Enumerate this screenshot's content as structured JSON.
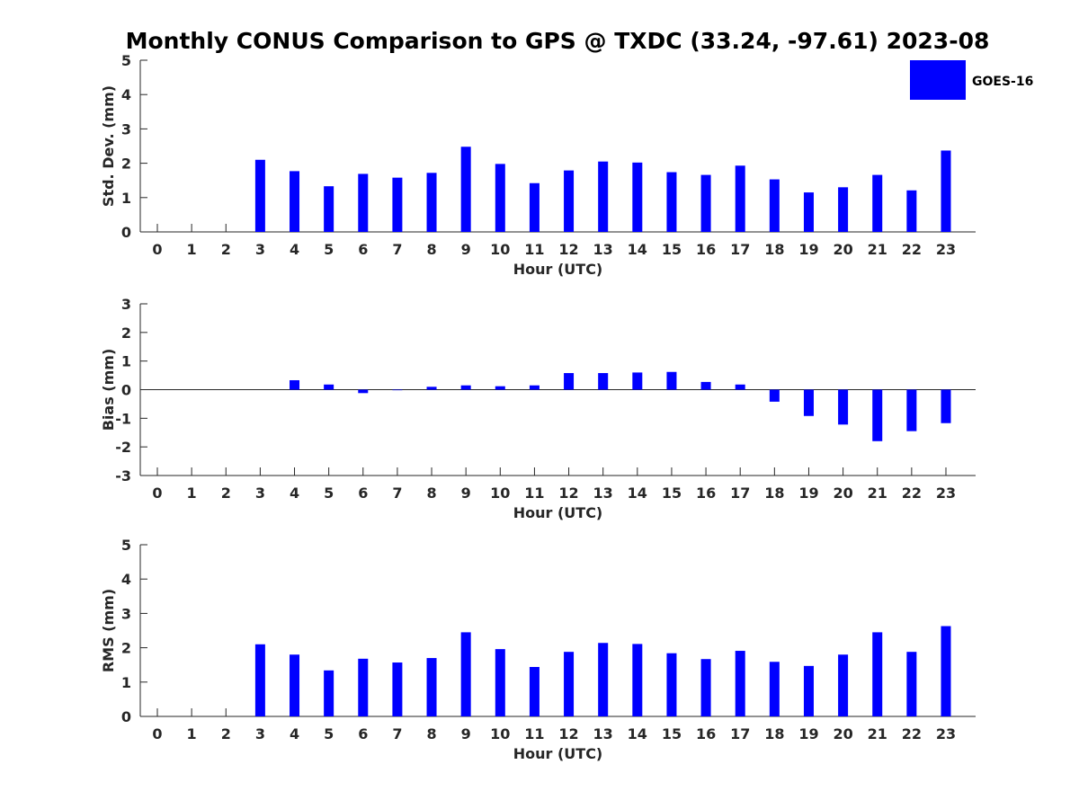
{
  "title": "Monthly CONUS Comparison to GPS @ TXDC (33.24, -97.61) 2023-08",
  "legend": {
    "label": "GOES-16",
    "color": "#0000ff",
    "placement": "top-right"
  },
  "chart_data": [
    {
      "type": "bar",
      "categories": [
        "0",
        "1",
        "2",
        "3",
        "4",
        "5",
        "6",
        "7",
        "8",
        "9",
        "10",
        "11",
        "12",
        "13",
        "14",
        "15",
        "16",
        "17",
        "18",
        "19",
        "20",
        "21",
        "22",
        "23"
      ],
      "series": [
        {
          "name": "GOES-16",
          "values": [
            null,
            null,
            null,
            2.1,
            1.77,
            1.33,
            1.69,
            1.58,
            1.72,
            2.48,
            1.98,
            1.42,
            1.79,
            2.05,
            2.02,
            1.74,
            1.66,
            1.93,
            1.53,
            1.15,
            1.3,
            1.66,
            1.21,
            2.37
          ]
        }
      ],
      "xlabel": "Hour (UTC)",
      "ylabel": "Std. Dev. (mm)",
      "ylim": [
        0,
        5
      ],
      "yticks": [
        "0",
        "1",
        "2",
        "3",
        "4",
        "5"
      ],
      "grid": false
    },
    {
      "type": "bar",
      "categories": [
        "0",
        "1",
        "2",
        "3",
        "4",
        "5",
        "6",
        "7",
        "8",
        "9",
        "10",
        "11",
        "12",
        "13",
        "14",
        "15",
        "16",
        "17",
        "18",
        "19",
        "20",
        "21",
        "22",
        "23"
      ],
      "series": [
        {
          "name": "GOES-16",
          "values": [
            null,
            null,
            null,
            0.0,
            0.33,
            0.18,
            -0.12,
            -0.02,
            0.1,
            0.15,
            0.12,
            0.15,
            0.58,
            0.58,
            0.6,
            0.62,
            0.27,
            0.18,
            -0.42,
            -0.92,
            -1.22,
            -1.8,
            -1.45,
            -1.17
          ]
        }
      ],
      "xlabel": "Hour (UTC)",
      "ylabel": "Bias (mm)",
      "ylim": [
        -3,
        3
      ],
      "yticks": [
        "-3",
        "-2",
        "-1",
        "0",
        "1",
        "2",
        "3"
      ],
      "zero_line": true,
      "grid": false
    },
    {
      "type": "bar",
      "categories": [
        "0",
        "1",
        "2",
        "3",
        "4",
        "5",
        "6",
        "7",
        "8",
        "9",
        "10",
        "11",
        "12",
        "13",
        "14",
        "15",
        "16",
        "17",
        "18",
        "19",
        "20",
        "21",
        "22",
        "23"
      ],
      "series": [
        {
          "name": "GOES-16",
          "values": [
            null,
            null,
            null,
            2.1,
            1.8,
            1.34,
            1.68,
            1.57,
            1.7,
            2.45,
            1.96,
            1.44,
            1.88,
            2.14,
            2.11,
            1.84,
            1.67,
            1.91,
            1.59,
            1.47,
            1.8,
            2.45,
            1.88,
            2.63
          ]
        }
      ],
      "xlabel": "Hour (UTC)",
      "ylabel": "RMS (mm)",
      "ylim": [
        0,
        5
      ],
      "yticks": [
        "0",
        "1",
        "2",
        "3",
        "4",
        "5"
      ],
      "grid": false
    }
  ]
}
